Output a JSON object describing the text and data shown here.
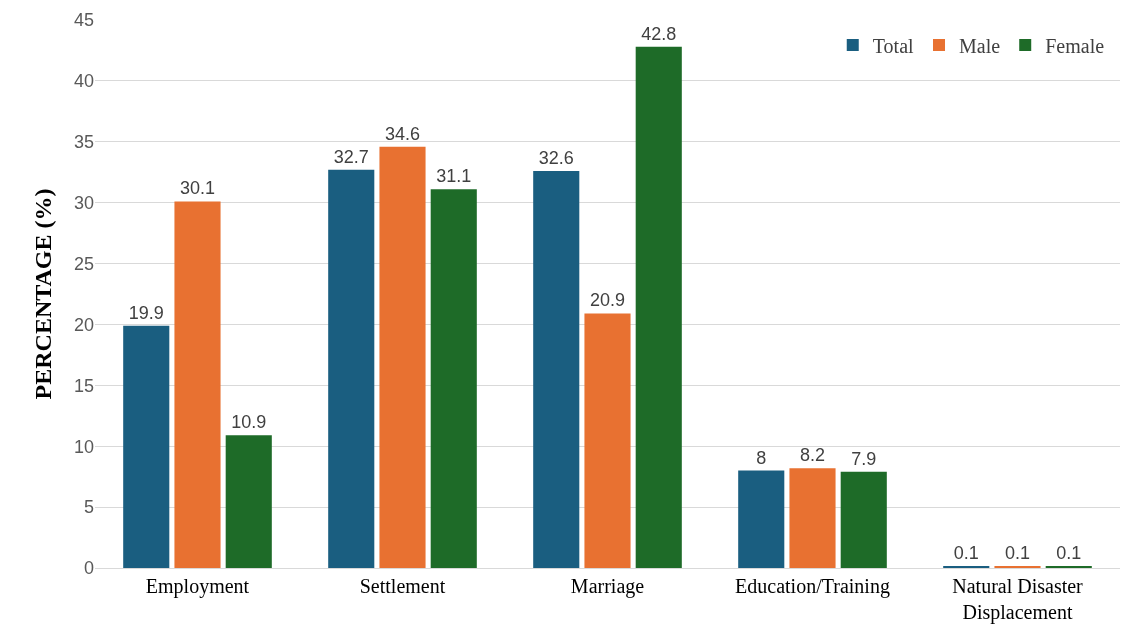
{
  "chart_data": {
    "type": "bar",
    "ylabel": "PERCENTAGE (%)",
    "categories": [
      "Employment",
      "Settlement",
      "Marriage",
      "Education/Training",
      "Natural Disaster Displacement"
    ],
    "series": [
      {
        "name": "Total",
        "color": "#1a5e80",
        "values": [
          19.9,
          32.7,
          32.6,
          8,
          0.1
        ]
      },
      {
        "name": "Male",
        "color": "#e87131",
        "values": [
          30.1,
          34.6,
          20.9,
          8.2,
          0.1
        ]
      },
      {
        "name": "Female",
        "color": "#1e6b28",
        "values": [
          10.9,
          31.1,
          42.8,
          7.9,
          0.1
        ]
      }
    ],
    "ylim": [
      0,
      45
    ],
    "yticks": [
      0,
      5,
      10,
      15,
      20,
      25,
      30,
      35,
      40,
      45
    ],
    "grid": "y",
    "legend": "top right",
    "data_labels": true
  }
}
